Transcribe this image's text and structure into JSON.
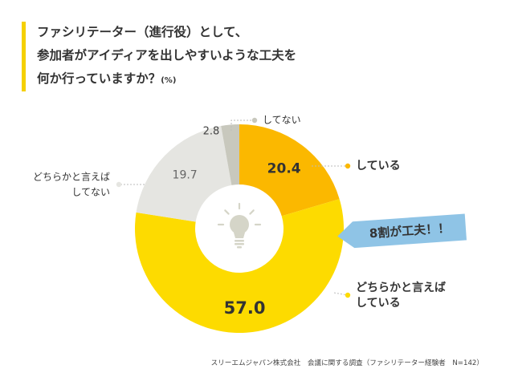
{
  "title": {
    "line1": "ファシリテーター（進行役）として、",
    "line2": "参加者がアイディアを出しやすいような工夫を",
    "line3": "何か行っていますか？",
    "unit": "(%)"
  },
  "callout": "8割が工夫！！",
  "source": "スリーエムジャパン株式会社　会議に関する調査（ファシリテーター経験者　N=142）",
  "colors": {
    "accent_bar": "#f5d000",
    "shiteiru": "#fbb800",
    "dochiraka_shiteiru": "#fddb00",
    "dochiraka_shitenai": "#e5e5e1",
    "shitenai": "#c8c8bd",
    "callout": "#8fc4e6"
  },
  "chart_data": {
    "type": "pie",
    "donut": true,
    "unit": "%",
    "slices": [
      {
        "label": "している",
        "value": 20.4,
        "color": "#fbb800",
        "label_side": "right"
      },
      {
        "label": "どちらかと言えば\nしている",
        "value": 57.0,
        "color": "#fddb00",
        "label_side": "right"
      },
      {
        "label": "どちらかと言えば\nしてない",
        "value": 19.7,
        "color": "#e5e5e1",
        "label_side": "left"
      },
      {
        "label": "してない",
        "value": 2.8,
        "color": "#c8c8bd",
        "label_side": "top"
      }
    ]
  }
}
